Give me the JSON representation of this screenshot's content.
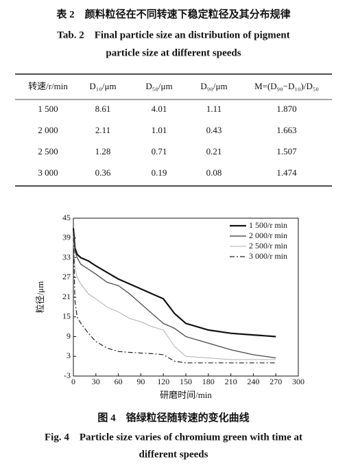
{
  "table_caption": {
    "zh": "表 2　颜料粒径在不同转速下稳定粒径及其分布规律",
    "en_line1": "Tab. 2　Final particle size an distribution of pigment",
    "en_line2": "particle size at different speeds"
  },
  "table": {
    "header": [
      "转速/r/min",
      "D₁₀/μm",
      "D₅₀/μm",
      "D₉₀/μm",
      "M=(D₉₀−D₁₀)/D₅₀"
    ],
    "rows": [
      [
        "1 500",
        "8.61",
        "4.01",
        "1.11",
        "1.870"
      ],
      [
        "2 000",
        "2.11",
        "1.01",
        "0.43",
        "1.663"
      ],
      [
        "2 500",
        "1.28",
        "0.71",
        "0.21",
        "1.507"
      ],
      [
        "3 000",
        "0.36",
        "0.19",
        "0.08",
        "1.474"
      ]
    ]
  },
  "chart_data": {
    "type": "line",
    "xlabel": "研磨时间/min",
    "ylabel": "粒径/μm",
    "x": [
      0,
      2,
      5,
      10,
      20,
      30,
      45,
      60,
      75,
      90,
      105,
      120,
      135,
      150,
      180,
      210,
      240,
      270
    ],
    "series": [
      {
        "name": "1 500/r min",
        "color": "#111111",
        "dash": "solid",
        "values": [
          42,
          36,
          34,
          33,
          32,
          30.5,
          28.5,
          26.5,
          25,
          23.5,
          22,
          20.5,
          16,
          13,
          11,
          10,
          9.5,
          9
        ]
      },
      {
        "name": "2 000/r min",
        "color": "#555555",
        "dash": "solid",
        "values": [
          40,
          35,
          33,
          31,
          29.5,
          28,
          25.5,
          24.5,
          22,
          19,
          16,
          13,
          11.5,
          9,
          7,
          5,
          3.5,
          2.5
        ]
      },
      {
        "name": "2 500/r min",
        "color": "#b0b0b0",
        "dash": "solid",
        "values": [
          38,
          30,
          27,
          25,
          22,
          20.5,
          18,
          16.5,
          14.5,
          13.5,
          12,
          11,
          6,
          3,
          2.5,
          2,
          2,
          2
        ]
      },
      {
        "name": "3 000/r min",
        "color": "#222222",
        "dash": "dash-dot",
        "values": [
          42,
          20,
          15,
          13,
          10,
          7.5,
          5.5,
          4.5,
          4.2,
          4,
          3.8,
          3.5,
          1.5,
          1,
          1,
          1,
          1,
          1
        ]
      }
    ],
    "xlim": [
      0,
      300
    ],
    "xticks": [
      0,
      30,
      60,
      90,
      120,
      150,
      180,
      210,
      240,
      270,
      300
    ],
    "ylim": [
      -3,
      45
    ],
    "yticks": [
      -3,
      3,
      9,
      15,
      21,
      27,
      33,
      39,
      45
    ],
    "grid": false,
    "legend": "upper-right"
  },
  "figure_caption": {
    "zh": "图 4　铬绿粒径随转速的变化曲线",
    "en_line1": "Fig. 4　Particle size varies of chromium green with time at",
    "en_line2": "different speeds"
  }
}
